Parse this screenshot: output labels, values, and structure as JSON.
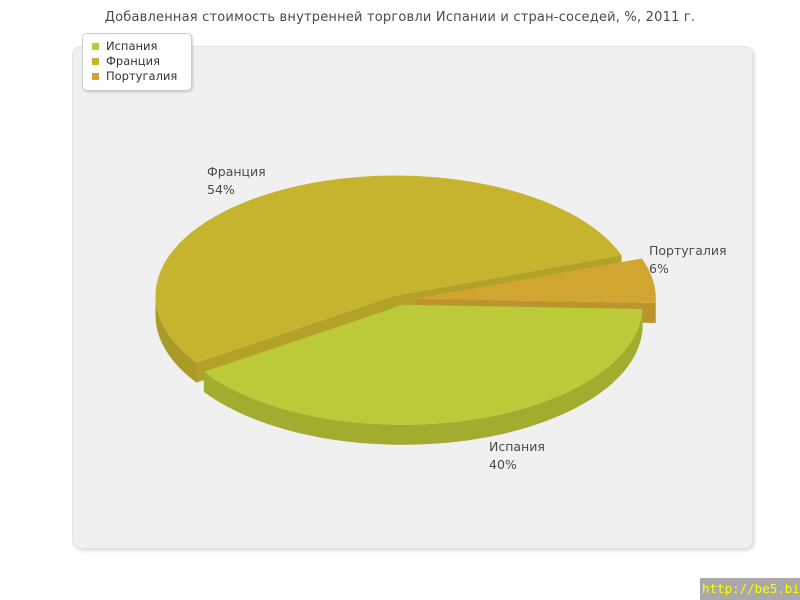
{
  "chart_data": {
    "type": "pie",
    "title": "Добавленная стоимость внутренней торговли Испании и стран-соседей, %, 2011 г.",
    "unit": "%",
    "style": "3d-exploded",
    "legend_position": "top-left",
    "slices": [
      {
        "label": "Испания",
        "value": 40,
        "pct": "40%",
        "color": "#bcc938"
      },
      {
        "label": "Франция",
        "value": 54,
        "pct": "54%",
        "color": "#c6b42f"
      },
      {
        "label": "Португалия",
        "value": 6,
        "pct": "6%",
        "color": "#d0a530"
      }
    ]
  },
  "watermark": {
    "url_text": "http://be5.biz/",
    "bg_color": "#a9a9a9",
    "text_color": "#ffff00"
  },
  "colors": {
    "page_bg": "#ffffff",
    "panel_bg": "#f0f0f0",
    "text": "#4a4a4a"
  }
}
